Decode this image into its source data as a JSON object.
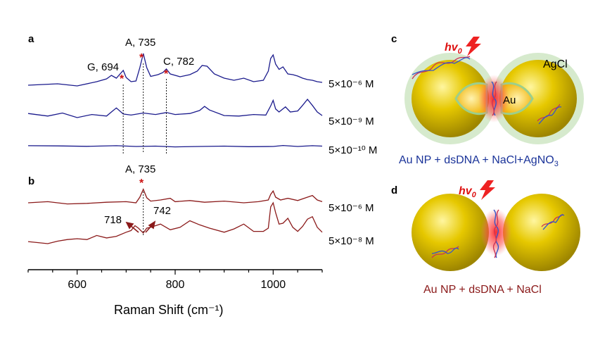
{
  "chart_data": [
    {
      "type": "line",
      "panel": "a",
      "xlim": [
        500,
        1100
      ],
      "xticks": [
        600,
        800,
        1000
      ],
      "xlabel": "Raman Shift (cm⁻¹)",
      "series": [
        {
          "name": "5×10⁻⁶ M",
          "x": [
            500,
            560,
            600,
            640,
            660,
            670,
            680,
            694,
            700,
            710,
            720,
            728,
            735,
            742,
            750,
            765,
            775,
            782,
            790,
            810,
            830,
            845,
            855,
            865,
            880,
            900,
            920,
            940,
            960,
            980,
            990,
            995,
            1000,
            1005,
            1012,
            1020,
            1030,
            1040,
            1050,
            1060,
            1070,
            1080,
            1090,
            1100
          ],
          "y": [
            0.1,
            0.14,
            0.08,
            0.2,
            0.28,
            0.38,
            0.3,
            0.52,
            0.32,
            0.2,
            0.22,
            0.6,
            1.0,
            0.6,
            0.35,
            0.4,
            0.46,
            0.56,
            0.42,
            0.34,
            0.4,
            0.5,
            0.66,
            0.64,
            0.42,
            0.3,
            0.24,
            0.3,
            0.2,
            0.24,
            0.5,
            0.86,
            0.96,
            0.7,
            0.55,
            0.62,
            0.42,
            0.4,
            0.36,
            0.3,
            0.26,
            0.24,
            0.2,
            0.18
          ]
        },
        {
          "name": "5×10⁻⁹ M",
          "x": [
            500,
            540,
            570,
            600,
            630,
            660,
            670,
            680,
            694,
            710,
            735,
            760,
            782,
            800,
            830,
            850,
            860,
            870,
            900,
            930,
            960,
            985,
            995,
            1000,
            1005,
            1012,
            1025,
            1035,
            1050,
            1060,
            1070,
            1080,
            1090,
            1100
          ],
          "y": [
            0.3,
            0.2,
            0.32,
            0.14,
            0.26,
            0.2,
            0.36,
            0.52,
            0.28,
            0.24,
            0.32,
            0.26,
            0.34,
            0.26,
            0.3,
            0.42,
            0.58,
            0.44,
            0.22,
            0.2,
            0.26,
            0.24,
            0.6,
            0.82,
            0.48,
            0.36,
            0.56,
            0.36,
            0.4,
            0.62,
            0.86,
            0.62,
            0.36,
            0.22
          ]
        },
        {
          "name": "5×10⁻¹⁰ M",
          "x": [
            500,
            560,
            620,
            680,
            720,
            760,
            800,
            850,
            900,
            950,
            1000,
            1020,
            1050,
            1080,
            1100
          ],
          "y": [
            0.22,
            0.2,
            0.16,
            0.22,
            0.14,
            0.18,
            0.1,
            0.14,
            0.18,
            0.12,
            0.14,
            0.24,
            0.14,
            0.22,
            0.18
          ]
        }
      ],
      "annotations": [
        {
          "x": 694,
          "label": "G, 694"
        },
        {
          "x": 735,
          "label": "A, 735"
        },
        {
          "x": 782,
          "label": "C, 782"
        }
      ],
      "color": "#1a1a8c"
    },
    {
      "type": "line",
      "panel": "b",
      "xlim": [
        500,
        1100
      ],
      "xticks": [
        600,
        800,
        1000
      ],
      "xlabel": "Raman Shift (cm⁻¹)",
      "series": [
        {
          "name": "5×10⁻⁶ M",
          "x": [
            500,
            540,
            580,
            620,
            660,
            700,
            720,
            728,
            735,
            742,
            750,
            770,
            790,
            800,
            830,
            860,
            900,
            940,
            970,
            990,
            995,
            1000,
            1005,
            1015,
            1030,
            1050,
            1070,
            1080,
            1090,
            1100
          ],
          "y": [
            0.2,
            0.24,
            0.16,
            0.18,
            0.22,
            0.24,
            0.2,
            0.4,
            0.68,
            0.38,
            0.26,
            0.3,
            0.36,
            0.24,
            0.28,
            0.22,
            0.26,
            0.2,
            0.24,
            0.3,
            0.5,
            0.62,
            0.4,
            0.3,
            0.36,
            0.28,
            0.4,
            0.46,
            0.3,
            0.24
          ]
        },
        {
          "name": "5×10⁻⁸ M",
          "x": [
            500,
            540,
            560,
            580,
            600,
            620,
            640,
            660,
            680,
            700,
            710,
            718,
            725,
            735,
            742,
            750,
            770,
            790,
            810,
            830,
            850,
            870,
            900,
            920,
            940,
            960,
            980,
            990,
            995,
            1000,
            1005,
            1012,
            1020,
            1030,
            1040,
            1050,
            1060,
            1070,
            1080,
            1090,
            1100
          ],
          "y": [
            0.05,
            0.0,
            0.06,
            0.1,
            0.12,
            0.1,
            0.2,
            0.14,
            0.18,
            0.28,
            0.32,
            0.44,
            0.38,
            0.26,
            0.38,
            0.4,
            0.48,
            0.34,
            0.4,
            0.56,
            0.46,
            0.38,
            0.28,
            0.36,
            0.48,
            0.3,
            0.3,
            0.38,
            0.9,
            1.0,
            0.76,
            0.48,
            0.5,
            0.62,
            0.4,
            0.3,
            0.42,
            0.6,
            0.66,
            0.4,
            0.28
          ]
        }
      ],
      "annotations": [
        {
          "x": 735,
          "label": "A, 735"
        },
        {
          "x": 718,
          "label": "718"
        },
        {
          "x": 742,
          "label": "742"
        }
      ],
      "color": "#8b1a1a"
    }
  ],
  "panel_labels": {
    "a": "a",
    "b": "b",
    "c": "c",
    "d": "d"
  },
  "schematic_c": {
    "hv_text": "hv",
    "hv_sub": "0",
    "agcl_label": "AgCl",
    "au_label": "Au",
    "caption_main": "Au NP + dsDNA + NaCl+AgNO",
    "caption_sub": "3",
    "caption_color": "#1a3399"
  },
  "schematic_d": {
    "hv_text": "hv",
    "hv_sub": "0",
    "caption": "Au NP + dsDNA + NaCl",
    "caption_color": "#8b1a1a"
  },
  "colors": {
    "gold": "#d4b400",
    "shell": "#b9dcb0",
    "hotspot": "#ff3b3b",
    "star": "#cc1111"
  }
}
